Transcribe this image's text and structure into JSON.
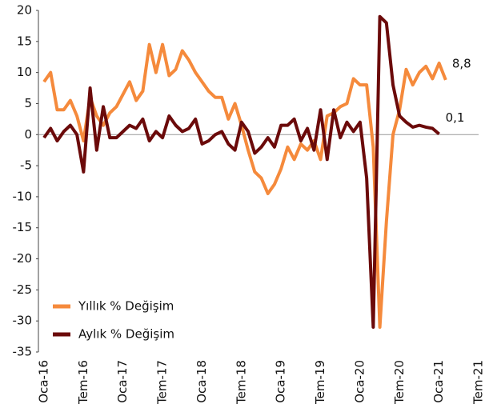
{
  "chart_data": {
    "type": "line",
    "categories": [
      "Oca-16",
      null,
      null,
      null,
      null,
      null,
      "Tem-16",
      null,
      null,
      null,
      null,
      null,
      "Oca-17",
      null,
      null,
      null,
      null,
      null,
      "Tem-17",
      null,
      null,
      null,
      null,
      null,
      "Oca-18",
      null,
      null,
      null,
      null,
      null,
      "Tem-18",
      null,
      null,
      null,
      null,
      null,
      "Oca-19",
      null,
      null,
      null,
      null,
      null,
      "Tem-19",
      null,
      null,
      null,
      null,
      null,
      "Oca-20",
      null,
      null,
      null,
      null,
      null,
      "Tem-20",
      null,
      null,
      null,
      null,
      null,
      "Oca-21",
      null,
      null,
      null,
      null,
      null,
      "Tem-21"
    ],
    "series": [
      {
        "name": "Yıllık % Değişim",
        "color": "#f58a3c",
        "values": [
          8.5,
          10,
          4,
          4,
          5.5,
          3,
          -1,
          6,
          3,
          1.5,
          3.5,
          4.5,
          6.5,
          8.5,
          5.5,
          7,
          14.5,
          10,
          14.5,
          9.5,
          10.5,
          13.5,
          12,
          10,
          8.5,
          7,
          6,
          6,
          2.5,
          5,
          1.5,
          -2.5,
          -6,
          -7,
          -9.5,
          -8,
          -5.5,
          -2,
          -4,
          -1.5,
          -2.5,
          -1,
          -4,
          3,
          3.5,
          4.5,
          5,
          9,
          8,
          8,
          -2,
          -31,
          -14,
          0,
          4,
          10.5,
          8,
          10,
          11,
          9,
          11.5,
          8.8,
          null,
          null,
          null,
          null,
          null
        ],
        "value_labels": [
          null,
          null,
          null,
          null,
          null,
          null,
          null,
          null,
          null,
          null,
          null,
          null,
          null,
          null,
          null,
          null,
          null,
          null,
          null,
          null,
          null,
          null,
          null,
          null,
          null,
          null,
          null,
          null,
          null,
          null,
          null,
          null,
          null,
          null,
          null,
          null,
          null,
          null,
          null,
          null,
          null,
          null,
          null,
          null,
          null,
          null,
          null,
          null,
          null,
          null,
          null,
          null,
          null,
          null,
          null,
          null,
          null,
          null,
          null,
          null,
          null,
          "8,8",
          null,
          null,
          null,
          null,
          null
        ]
      },
      {
        "name": "Aylık % Değişim",
        "color": "#6b0a0a",
        "values": [
          -0.5,
          1,
          -1,
          0.5,
          1.5,
          0,
          -6,
          7.5,
          -2.5,
          4.5,
          -0.5,
          -0.5,
          0.5,
          1.5,
          1,
          2.5,
          -1,
          0.5,
          -0.5,
          3,
          1.5,
          0.5,
          1,
          2.5,
          -1.5,
          -1,
          0,
          0.5,
          -1.5,
          -2.5,
          2,
          0.5,
          -3,
          -2,
          -0.5,
          -2,
          1.5,
          1.5,
          2.5,
          -1,
          1,
          -2.5,
          4,
          -4,
          4,
          -0.5,
          2,
          0.5,
          2,
          -7,
          -31,
          19,
          18,
          8,
          3,
          2,
          1.2,
          1.5,
          1.2,
          1,
          0.1,
          null,
          null,
          null,
          null,
          null,
          null
        ],
        "value_labels": [
          null,
          null,
          null,
          null,
          null,
          null,
          null,
          null,
          null,
          null,
          null,
          null,
          null,
          null,
          null,
          null,
          null,
          null,
          null,
          null,
          null,
          null,
          null,
          null,
          null,
          null,
          null,
          null,
          null,
          null,
          null,
          null,
          null,
          null,
          null,
          null,
          null,
          null,
          null,
          null,
          null,
          null,
          null,
          null,
          null,
          null,
          null,
          null,
          null,
          null,
          null,
          null,
          null,
          null,
          null,
          null,
          null,
          null,
          null,
          null,
          "0,1",
          null,
          null,
          null,
          null,
          null,
          null
        ]
      }
    ],
    "ylim": [
      -35,
      20
    ],
    "yticks": [
      -35,
      -30,
      -25,
      -20,
      -15,
      -10,
      -5,
      0,
      5,
      10,
      15,
      20
    ]
  }
}
